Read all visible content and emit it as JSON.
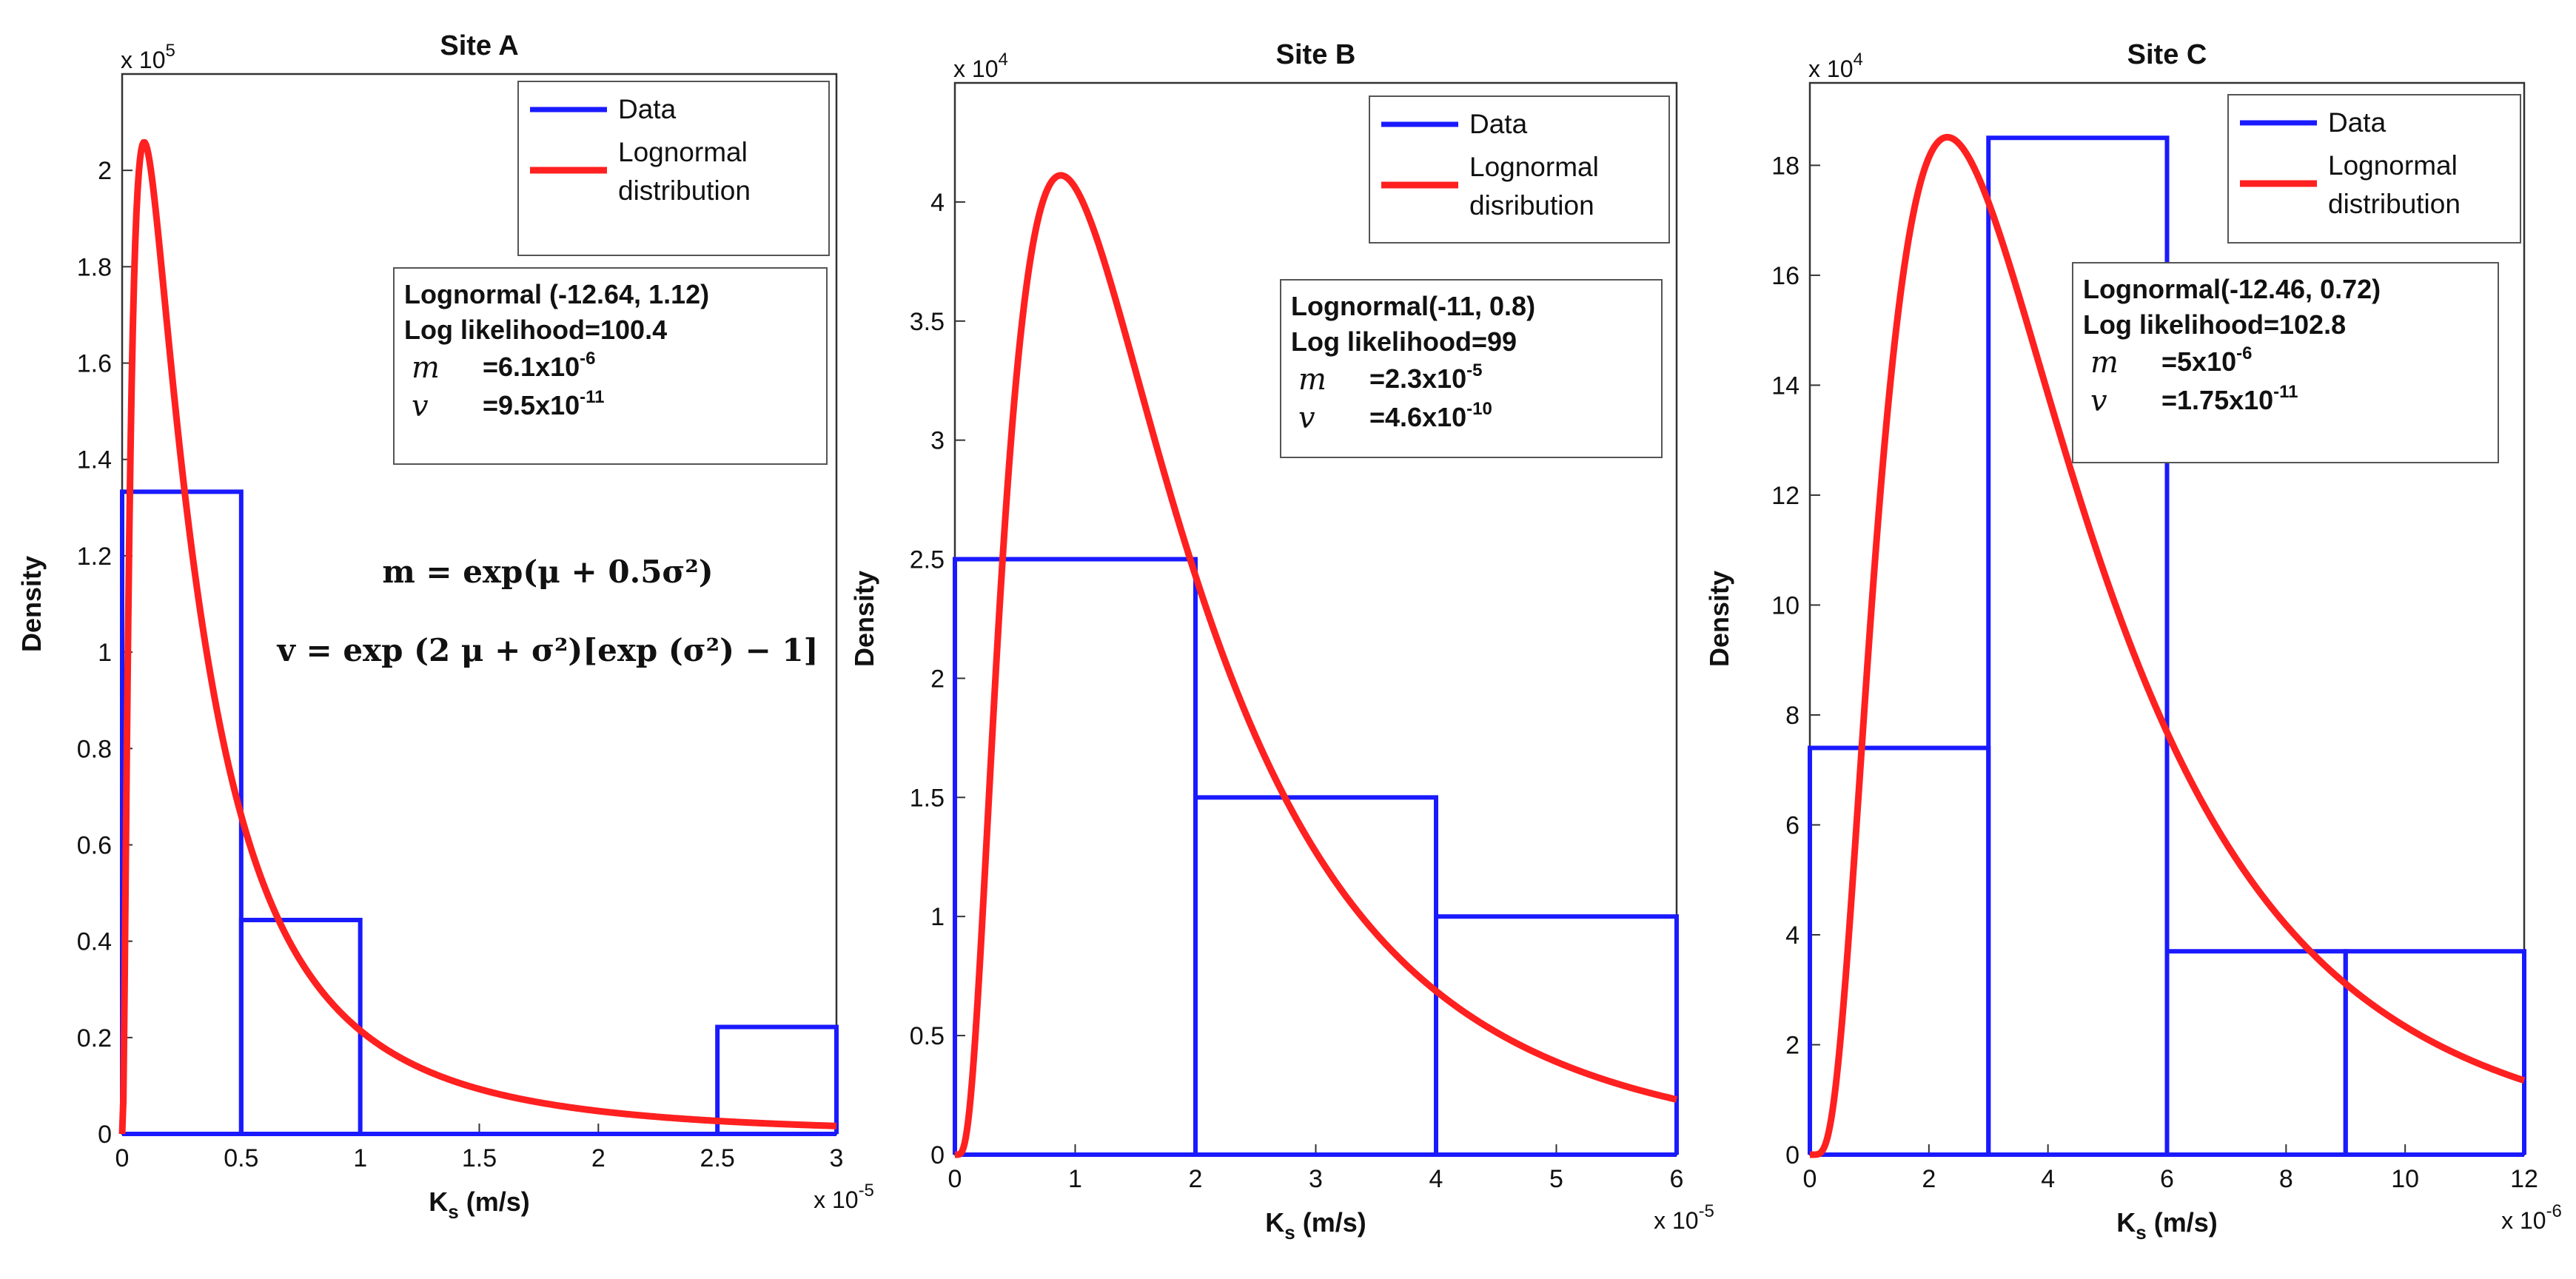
{
  "chart_data": [
    {
      "type": "histogram",
      "title": "Site A",
      "xlabel": "K",
      "xlabel_sub": "s",
      "xlabel_unit": " (m/s)",
      "ylabel": "Density",
      "x_multiplier": "x 10",
      "x_multiplier_exp": "-5",
      "y_multiplier": "x 10",
      "y_multiplier_exp": "5",
      "xlim": [
        0,
        3
      ],
      "ylim": [
        0,
        2.2
      ],
      "xticks": [
        0,
        0.5,
        1,
        1.5,
        2,
        2.5,
        3
      ],
      "xtick_labels": [
        "0",
        "0.5",
        "1",
        "1.5",
        "2",
        "2.5",
        "3"
      ],
      "yticks": [
        0,
        0.2,
        0.4,
        0.6,
        0.8,
        1,
        1.2,
        1.4,
        1.6,
        1.8,
        2
      ],
      "ytick_labels": [
        "0",
        "0.2",
        "0.4",
        "0.6",
        "0.8",
        "1",
        "1.2",
        "1.4",
        "1.6",
        "1.8",
        "2"
      ],
      "bins": [
        {
          "from": 0,
          "to": 0.5,
          "value": 1.333
        },
        {
          "from": 0.5,
          "to": 1,
          "value": 0.444
        },
        {
          "from": 1,
          "to": 2.5,
          "value": 0
        },
        {
          "from": 2.5,
          "to": 3,
          "value": 0.222
        }
      ],
      "lognormal": {
        "mu": -12.64,
        "sigma": 1.12,
        "x_scale": 1e-05,
        "y_scale": 100000.0
      },
      "legend": {
        "position": "top-right",
        "items": [
          "Data",
          "Lognormal",
          "distribution"
        ]
      },
      "stats_box": {
        "line1": "Lognormal (-12.64, 1.12)",
        "line2": "Log likelihood=100.4",
        "m_symbol": "m",
        "m_value": "=6.1x10",
        "m_exp": "-6",
        "v_symbol": "v",
        "v_value": "=9.5x10",
        "v_exp": "-11"
      },
      "formula_m": "m = exp(μ + 0.5σ²)",
      "formula_v": "v = exp (2 μ + σ²)[exp (σ²) − 1]"
    },
    {
      "type": "histogram",
      "title": "Site B",
      "xlabel": "K",
      "xlabel_sub": "s",
      "xlabel_unit": " (m/s)",
      "ylabel": "Density",
      "x_multiplier": "x 10",
      "x_multiplier_exp": "-5",
      "y_multiplier": "x 10",
      "y_multiplier_exp": "4",
      "xlim": [
        0,
        6
      ],
      "ylim": [
        0,
        4.5
      ],
      "xticks": [
        0,
        1,
        2,
        3,
        4,
        5,
        6
      ],
      "xtick_labels": [
        "0",
        "1",
        "2",
        "3",
        "4",
        "5",
        "6"
      ],
      "yticks": [
        0,
        0.5,
        1,
        1.5,
        2,
        2.5,
        3,
        3.5,
        4
      ],
      "ytick_labels": [
        "0",
        "0.5",
        "1",
        "1.5",
        "2",
        "2.5",
        "3",
        "3.5",
        "4"
      ],
      "bins": [
        {
          "from": 0,
          "to": 2,
          "value": 2.5
        },
        {
          "from": 2,
          "to": 4,
          "value": 1.5
        },
        {
          "from": 4,
          "to": 6,
          "value": 1.0
        }
      ],
      "lognormal": {
        "mu": -11,
        "sigma": 0.8,
        "x_scale": 1e-05,
        "y_scale": 10000.0
      },
      "legend": {
        "position": "top-right",
        "items": [
          "Data",
          "Lognormal",
          "disribution"
        ]
      },
      "stats_box": {
        "line1": "Lognormal(-11, 0.8)",
        "line2": "Log likelihood=99",
        "m_symbol": "m",
        "m_value": "=2.3x10",
        "m_exp": "-5",
        "v_symbol": "v",
        "v_value": "=4.6x10",
        "v_exp": "-10"
      }
    },
    {
      "type": "histogram",
      "title": "Site C",
      "xlabel": "K",
      "xlabel_sub": "s",
      "xlabel_unit": " (m/s)",
      "ylabel": "Density",
      "x_multiplier": "x 10",
      "x_multiplier_exp": "-6",
      "y_multiplier": "x 10",
      "y_multiplier_exp": "4",
      "xlim": [
        0,
        12
      ],
      "ylim": [
        0,
        19.5
      ],
      "xticks": [
        0,
        2,
        4,
        6,
        8,
        10,
        12
      ],
      "xtick_labels": [
        "0",
        "2",
        "4",
        "6",
        "8",
        "10",
        "12"
      ],
      "yticks": [
        0,
        2,
        4,
        6,
        8,
        10,
        12,
        14,
        16,
        18
      ],
      "ytick_labels": [
        "0",
        "2",
        "4",
        "6",
        "8",
        "10",
        "12",
        "14",
        "16",
        "18"
      ],
      "bins": [
        {
          "from": 0,
          "to": 3,
          "value": 7.4
        },
        {
          "from": 3,
          "to": 6,
          "value": 18.5
        },
        {
          "from": 6,
          "to": 9,
          "value": 3.7
        },
        {
          "from": 9,
          "to": 12,
          "value": 3.7
        }
      ],
      "lognormal": {
        "mu": -12.46,
        "sigma": 0.72,
        "x_scale": 1e-06,
        "y_scale": 10000.0
      },
      "legend": {
        "position": "top-right",
        "items": [
          "Data",
          "Lognormal",
          "distribution"
        ]
      },
      "stats_box": {
        "line1": "Lognormal(-12.46, 0.72)",
        "line2": "Log likelihood=102.8",
        "m_symbol": "m",
        "m_value": "=5x10",
        "m_exp": "-6",
        "v_symbol": "v",
        "v_value": "=1.75x10",
        "v_exp": "-11"
      }
    }
  ],
  "colors": {
    "data": "#1a1aff",
    "fit": "#ff2020",
    "axis": "#333333"
  }
}
